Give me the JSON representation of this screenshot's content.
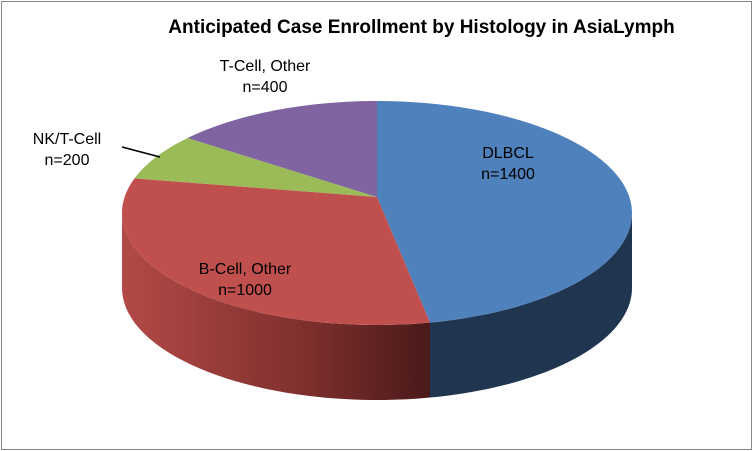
{
  "chart_data": {
    "type": "pie",
    "style": "3d",
    "title": "Anticipated Case Enrollment by Histology in AsiaLymph",
    "start": "top, clockwise",
    "slices": [
      {
        "label": "DLBCL",
        "value": 1400,
        "value_label": "n=1400",
        "color": "#4F81BD",
        "side_color": "#1F3550"
      },
      {
        "label": "B-Cell, Other",
        "value": 1000,
        "value_label": "n=1000",
        "color": "#C0504D",
        "side_color": "#8E3532"
      },
      {
        "label": "NK/T-Cell",
        "value": 200,
        "value_label": "n=200",
        "color": "#9BBB59",
        "side_color": "#6F8A3C"
      },
      {
        "label": "T-Cell, Other",
        "value": 400,
        "value_label": "n=400",
        "color": "#8064A2",
        "side_color": "#5C4676"
      }
    ]
  }
}
